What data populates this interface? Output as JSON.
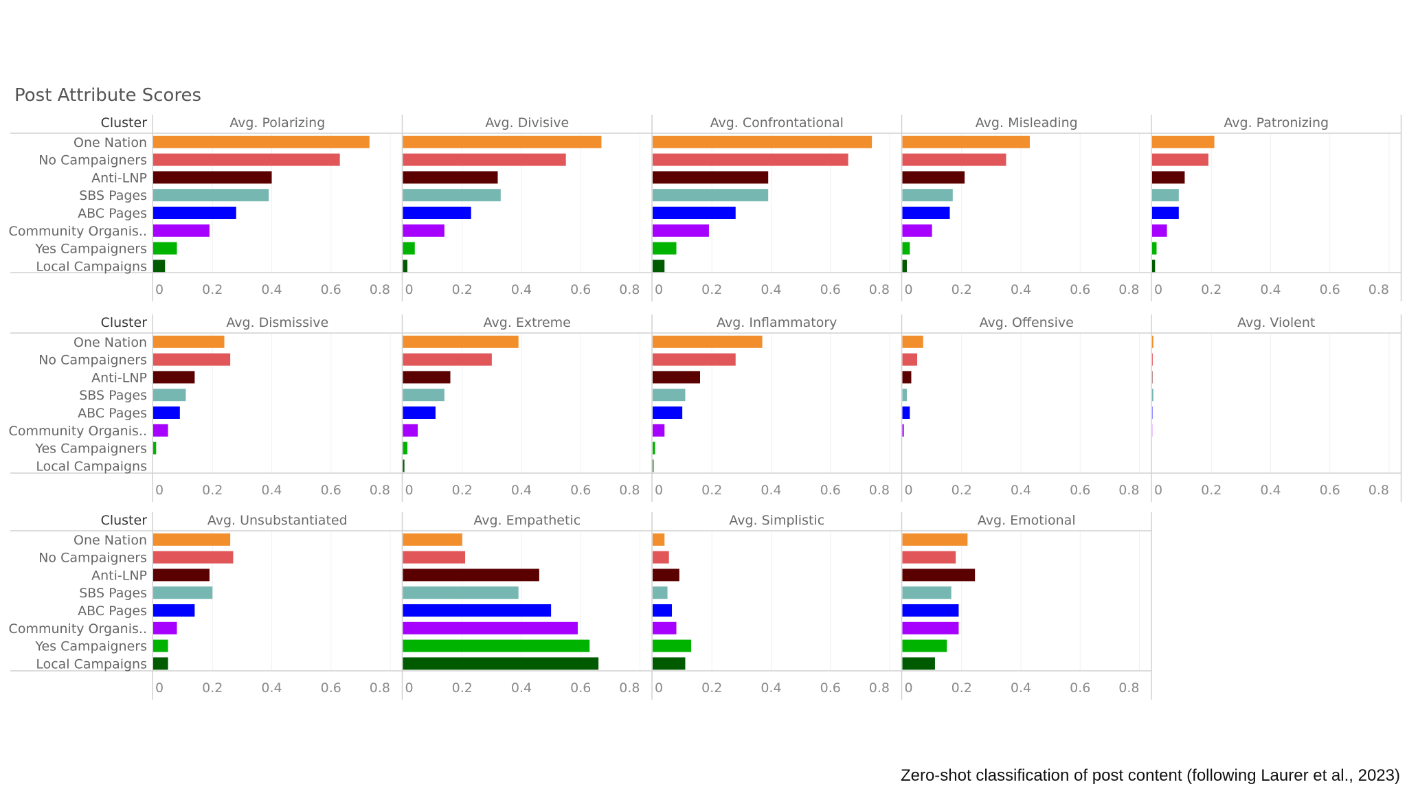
{
  "title": "Post Attribute Scores",
  "caption": "Zero-shot classification of post content (following Laurer et al., 2023)",
  "chart_data": {
    "type": "bar",
    "orientation": "horizontal",
    "layout": "small-multiples",
    "row_header": "Cluster",
    "categories": [
      "One Nation",
      "No Campaigners",
      "Anti-LNP",
      "SBS Pages",
      "ABC Pages",
      "Community Organis..",
      "Yes Campaigners",
      "Local Campaigns"
    ],
    "category_colors": [
      "#f28e2b",
      "#e15759",
      "#5b0000",
      "#76b7b2",
      "#0000ff",
      "#a600ff",
      "#00b300",
      "#005a00"
    ],
    "xlim": [
      0,
      0.8
    ],
    "xticks": [
      "0",
      "0.2",
      "0.4",
      "0.6",
      "0.8"
    ],
    "grid": true,
    "panels": [
      {
        "title": "Avg. Polarizing",
        "values": [
          0.73,
          0.63,
          0.4,
          0.39,
          0.28,
          0.19,
          0.08,
          0.04
        ]
      },
      {
        "title": "Avg. Divisive",
        "values": [
          0.67,
          0.55,
          0.32,
          0.33,
          0.23,
          0.14,
          0.04,
          0.015
        ]
      },
      {
        "title": "Avg. Confrontational",
        "values": [
          0.74,
          0.66,
          0.39,
          0.39,
          0.28,
          0.19,
          0.08,
          0.04
        ]
      },
      {
        "title": "Avg. Misleading",
        "values": [
          0.43,
          0.35,
          0.21,
          0.17,
          0.16,
          0.1,
          0.025,
          0.015
        ]
      },
      {
        "title": "Avg. Patronizing",
        "values": [
          0.21,
          0.19,
          0.11,
          0.09,
          0.09,
          0.05,
          0.015,
          0.01
        ]
      },
      {
        "title": "Avg. Dismissive",
        "values": [
          0.24,
          0.26,
          0.14,
          0.11,
          0.09,
          0.05,
          0.01,
          0.0
        ]
      },
      {
        "title": "Avg. Extreme",
        "values": [
          0.39,
          0.3,
          0.16,
          0.14,
          0.11,
          0.05,
          0.015,
          0.005
        ]
      },
      {
        "title": "Avg. Inflammatory",
        "values": [
          0.37,
          0.28,
          0.16,
          0.11,
          0.1,
          0.04,
          0.008,
          0.003
        ]
      },
      {
        "title": "Avg. Offensive",
        "values": [
          0.07,
          0.05,
          0.03,
          0.015,
          0.025,
          0.005,
          0.0,
          0.0
        ]
      },
      {
        "title": "Avg. Violent",
        "values": [
          0.004,
          0.002,
          0.001,
          0.004,
          0.001,
          0.0005,
          0.0,
          0.0
        ]
      },
      {
        "title": "Avg. Unsubstantiated",
        "values": [
          0.26,
          0.27,
          0.19,
          0.2,
          0.14,
          0.08,
          0.05,
          0.05
        ]
      },
      {
        "title": "Avg. Empathetic",
        "values": [
          0.2,
          0.21,
          0.46,
          0.39,
          0.5,
          0.59,
          0.63,
          0.66
        ]
      },
      {
        "title": "Avg. Simplistic",
        "values": [
          0.04,
          0.055,
          0.09,
          0.05,
          0.065,
          0.08,
          0.13,
          0.11
        ]
      },
      {
        "title": "Avg. Emotional",
        "values": [
          0.22,
          0.18,
          0.245,
          0.165,
          0.19,
          0.19,
          0.15,
          0.11
        ]
      }
    ]
  }
}
